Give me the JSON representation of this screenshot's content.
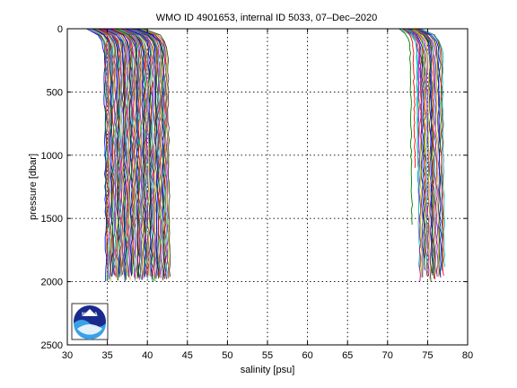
{
  "chart_data": {
    "type": "line",
    "title": "WMO ID 4901653, internal ID 5033, 07–Dec–2020",
    "xlabel": "salinity [psu]",
    "ylabel": "pressure [dbar]",
    "xlim": [
      30,
      80
    ],
    "ylim": [
      0,
      2500
    ],
    "y_reversed": true,
    "grid": true,
    "x_ticks": [
      "30",
      "35",
      "40",
      "45",
      "50",
      "55",
      "60",
      "65",
      "70",
      "75",
      "80"
    ],
    "y_ticks": [
      "0",
      "500",
      "1000",
      "1500",
      "2000",
      "2500"
    ],
    "note": "Dense family of vertical salinity profiles; each successive profile offset in salinity. Left group spans roughly 34.5-44 psu, right group roughly 71-77 psu, pressures 0-2000 dbar.",
    "series_colors": [
      "#0000ff",
      "#008000",
      "#ff0000",
      "#00bfbf",
      "#bf00bf",
      "#bfbf00",
      "#404040"
    ],
    "left_group": {
      "count": 70,
      "start_x": 34.6,
      "step": 0.115,
      "surface_start": 32.3,
      "max_pressure": 2000
    },
    "right_group": {
      "count": 22,
      "start_x": 73.7,
      "step": 0.15,
      "surface_start": 71.3,
      "max_pressure": 2000
    },
    "right_short_profiles": [
      {
        "x": 72.8,
        "pmax": 1550
      },
      {
        "x": 73.2,
        "pmax": 1100
      },
      {
        "x": 73.6,
        "pmax": 1300
      },
      {
        "x": 74.0,
        "pmax": 900
      },
      {
        "x": 74.4,
        "pmax": 1000
      },
      {
        "x": 75.4,
        "pmax": 1950
      }
    ]
  },
  "logo": {
    "text": "NOAA",
    "icon": "noaa-logo-icon"
  }
}
